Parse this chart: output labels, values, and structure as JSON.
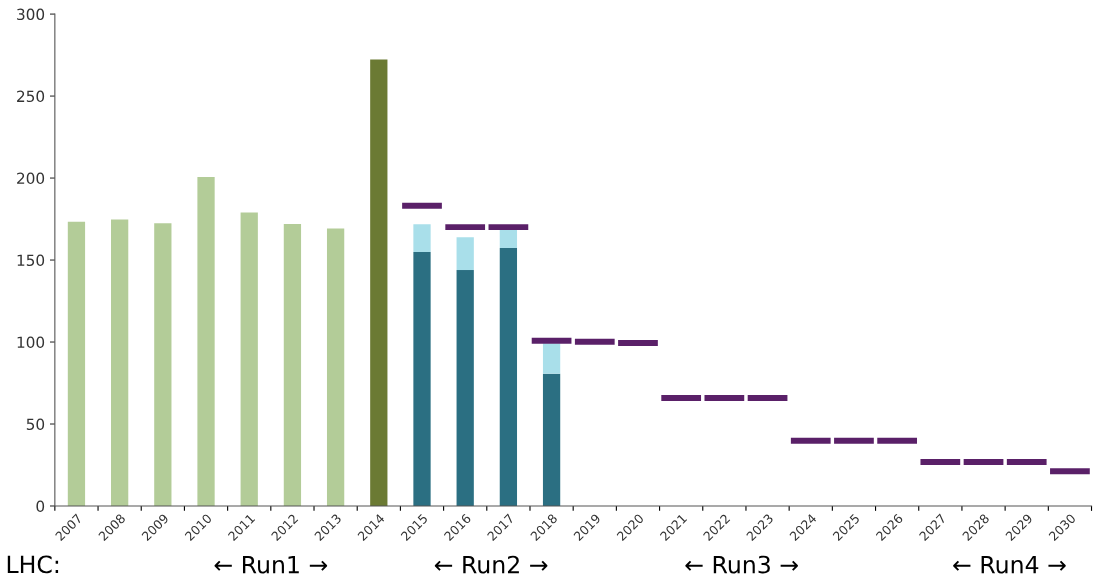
{
  "chart_data": {
    "type": "bar",
    "categories": [
      "2007",
      "2008",
      "2009",
      "2010",
      "2011",
      "2012",
      "2013",
      "2014",
      "2015",
      "2016",
      "2017",
      "2018",
      "2019",
      "2020",
      "2021",
      "2022",
      "2023",
      "2024",
      "2025",
      "2026",
      "2027",
      "2028",
      "2029",
      "2030"
    ],
    "ylim": [
      0,
      300
    ],
    "yticks": [
      0,
      50,
      100,
      150,
      200,
      250,
      300
    ],
    "grid": false,
    "legend": false,
    "series": [
      {
        "color": "#b3cc98",
        "values": [
          173.3,
          174.8,
          172.4,
          200.6,
          179,
          172,
          169.3,
          null,
          null,
          null,
          null,
          null,
          null,
          null,
          null,
          null,
          null,
          null,
          null,
          null,
          null,
          null,
          null,
          null
        ]
      },
      {
        "color": "#6b7a33",
        "values": [
          null,
          null,
          null,
          null,
          null,
          null,
          null,
          272.3,
          null,
          null,
          null,
          null,
          null,
          null,
          null,
          null,
          null,
          null,
          null,
          null,
          null,
          null,
          null,
          null
        ]
      },
      {
        "color": "#2b6f82",
        "values": [
          null,
          null,
          null,
          null,
          null,
          null,
          null,
          null,
          154.9,
          143.9,
          157.3,
          80.7,
          null,
          null,
          null,
          null,
          null,
          null,
          null,
          null,
          null,
          null,
          null,
          null
        ]
      },
      {
        "color": "#a9dfea",
        "base": [
          null,
          null,
          null,
          null,
          null,
          null,
          null,
          null,
          154.9,
          143.9,
          157.3,
          80.7,
          null,
          null,
          null,
          null,
          null,
          null,
          null,
          null,
          null,
          null,
          null,
          null
        ],
        "values": [
          null,
          null,
          null,
          null,
          null,
          null,
          null,
          null,
          17,
          20,
          11,
          18.5,
          null,
          null,
          null,
          null,
          null,
          null,
          null,
          null,
          null,
          null,
          null,
          null
        ]
      },
      {
        "color": "#5a2068",
        "base": [
          null,
          null,
          null,
          null,
          null,
          null,
          null,
          null,
          181.3,
          168.3,
          168.3,
          99.0,
          98.4,
          97.6,
          64.1,
          64.1,
          64.1,
          38.0,
          38.0,
          38.0,
          25.0,
          25.0,
          25.0,
          19.4
        ],
        "values": [
          null,
          null,
          null,
          null,
          null,
          null,
          null,
          null,
          3.6,
          3.6,
          3.6,
          3.6,
          3.6,
          3.6,
          3.6,
          3.6,
          3.6,
          3.6,
          3.6,
          3.6,
          3.6,
          3.6,
          3.6,
          3.6
        ]
      }
    ],
    "annotations": [
      "LHC:",
      "← Run1 →",
      "← Run2 →",
      "← Run3 →",
      "← Run4 →"
    ]
  }
}
